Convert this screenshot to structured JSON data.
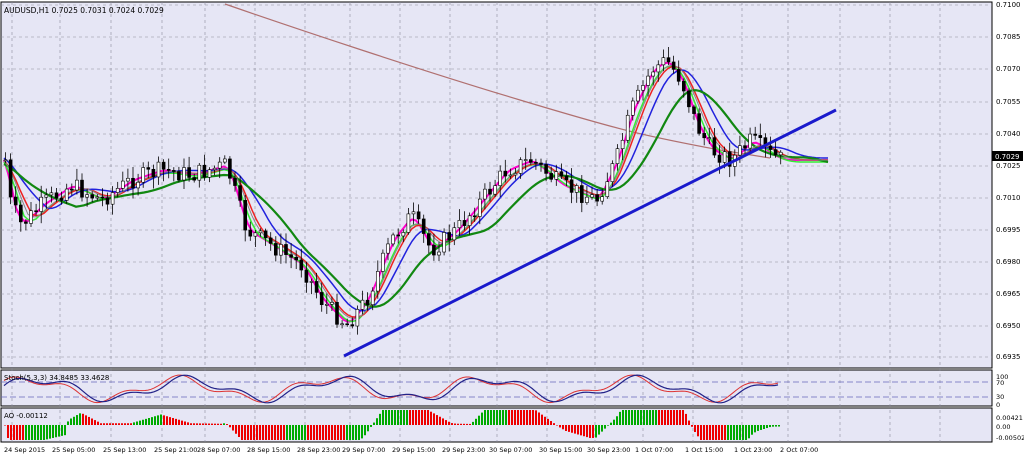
{
  "symbol_header": "AUDUSD,H1  0.7025 0.7031 0.7024 0.7029",
  "current_price_tag": "0.7029",
  "price_axis_labels": [
    "0.7100",
    "0.7085",
    "0.7070",
    "0.7055",
    "0.7040",
    "0.7025",
    "0.7010",
    "0.6995",
    "0.6980",
    "0.6965",
    "0.6950",
    "0.6935"
  ],
  "stoch_header": "Stoch(5,3,3) 34.8485 33.4628",
  "stoch_axis_labels": [
    "100",
    "70",
    "30",
    "0"
  ],
  "ao_header": "AO -0.00112",
  "ao_axis_labels": [
    "0.00421",
    "0.00",
    "-0.00502"
  ],
  "time_labels": [
    "24 Sep 2015",
    "25 Sep 05:00",
    "25 Sep 13:00",
    "25 Sep 21:00",
    "28 Sep 07:00",
    "28 Sep 15:00",
    "28 Sep 23:00",
    "29 Sep 07:00",
    "29 Sep 15:00",
    "29 Sep 23:00",
    "30 Sep 07:00",
    "30 Sep 15:00",
    "30 Sep 23:00",
    "1 Oct 07:00",
    "1 Oct 15:00",
    "1 Oct 23:00",
    "2 Oct 07:00"
  ],
  "colors": {
    "background": "#e6e6f5",
    "grid": "#8c8c9c",
    "bull_candle": "#ffffff",
    "bear_candle": "#000000",
    "ma_magenta": "#ff00cc",
    "ma_green_light": "#33ee33",
    "ma_red": "#ee2222",
    "ma_blue": "#2222dd",
    "ma_green_dark": "#118811",
    "ma_grey": "#888888",
    "ma_long": "#b07070",
    "trendline": "#1a1acc",
    "ao_up": "#00aa00",
    "ao_down": "#ee0000"
  }
}
